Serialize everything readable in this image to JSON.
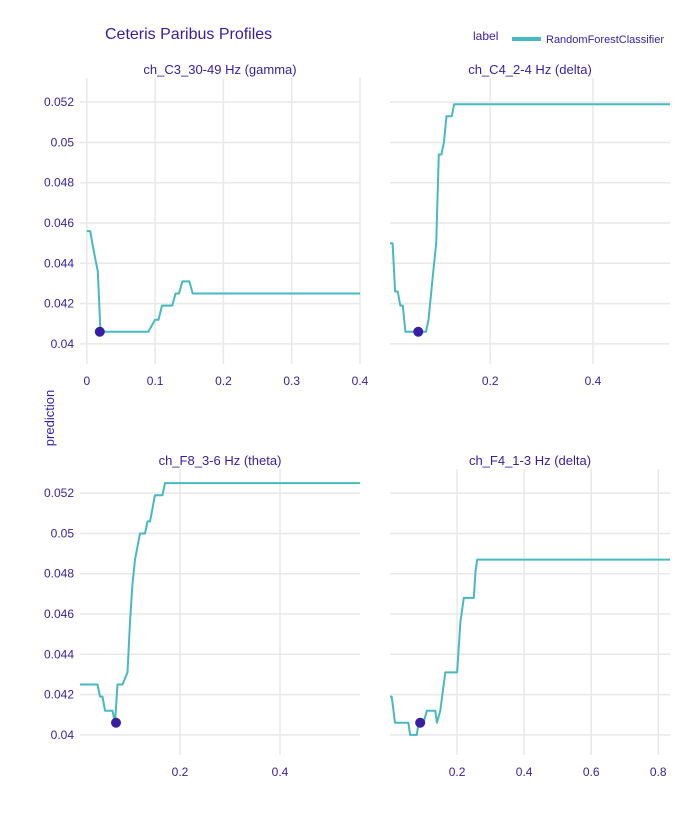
{
  "chart_data": {
    "type": "line",
    "title": "Ceteris Paribus Profiles",
    "ylabel": "prediction",
    "legend": {
      "title": "label",
      "entries": [
        "RandomForestClassifier"
      ],
      "placement": "top-right"
    },
    "line_color": "#46bac2",
    "point_color": "#371ea3",
    "grid": true,
    "ylim": [
      0.039,
      0.0532
    ],
    "yticks": [
      0.04,
      0.042,
      0.044,
      0.046,
      0.048,
      0.05,
      0.052
    ],
    "ytick_labels": [
      "0.04",
      "0.042",
      "0.044",
      "0.046",
      "0.048",
      "0.05",
      "0.052"
    ],
    "panels": [
      {
        "subtitle": "ch_C3_30-49 Hz (gamma)",
        "xlim": [
          -0.01,
          0.4
        ],
        "xticks": [
          0,
          0.1,
          0.2,
          0.3,
          0.4
        ],
        "xtick_labels": [
          "0",
          "0.1",
          "0.2",
          "0.3",
          "0.4"
        ],
        "show_yticks": true,
        "line": {
          "x": [
            0,
            0.005,
            0.008,
            0.012,
            0.016,
            0.02,
            0.05,
            0.09,
            0.1,
            0.105,
            0.11,
            0.125,
            0.13,
            0.135,
            0.14,
            0.15,
            0.155,
            0.4
          ],
          "y": [
            0.0456,
            0.0456,
            0.045,
            0.0443,
            0.0436,
            0.0406,
            0.0406,
            0.0406,
            0.0412,
            0.0412,
            0.0419,
            0.0419,
            0.0425,
            0.0425,
            0.0431,
            0.0431,
            0.0425,
            0.0425
          ]
        },
        "point": {
          "x": 0.019,
          "y": 0.0406
        }
      },
      {
        "subtitle": "ch_C4_2-4 Hz (delta)",
        "xlim": [
          0.005,
          0.55
        ],
        "xticks": [
          0.2,
          0.4
        ],
        "xtick_labels": [
          "0.2",
          "0.4"
        ],
        "show_yticks": false,
        "line": {
          "x": [
            0.005,
            0.01,
            0.015,
            0.02,
            0.025,
            0.03,
            0.035,
            0.04,
            0.05,
            0.06,
            0.07,
            0.075,
            0.08,
            0.085,
            0.09,
            0.095,
            0.1,
            0.105,
            0.11,
            0.115,
            0.12,
            0.125,
            0.13,
            0.135,
            0.14,
            0.55
          ],
          "y": [
            0.045,
            0.045,
            0.0426,
            0.0426,
            0.0419,
            0.0419,
            0.0406,
            0.0406,
            0.0406,
            0.0406,
            0.0406,
            0.0406,
            0.0412,
            0.0425,
            0.0438,
            0.045,
            0.0494,
            0.0494,
            0.05,
            0.0513,
            0.0513,
            0.0513,
            0.0519,
            0.0519,
            0.0519,
            0.0519
          ]
        },
        "point": {
          "x": 0.06,
          "y": 0.0406
        }
      },
      {
        "subtitle": "ch_F8_3-6 Hz (theta)",
        "xlim": [
          0,
          0.56
        ],
        "xticks": [
          0.2,
          0.4
        ],
        "xtick_labels": [
          "0.2",
          "0.4"
        ],
        "show_yticks": true,
        "line": {
          "x": [
            0,
            0.03,
            0.035,
            0.04,
            0.045,
            0.05,
            0.06,
            0.065,
            0.07,
            0.075,
            0.085,
            0.095,
            0.1,
            0.105,
            0.11,
            0.12,
            0.13,
            0.135,
            0.14,
            0.15,
            0.16,
            0.165,
            0.17,
            0.56
          ],
          "y": [
            0.0425,
            0.0425,
            0.0425,
            0.0419,
            0.0419,
            0.0412,
            0.0412,
            0.0412,
            0.0406,
            0.0425,
            0.0425,
            0.0431,
            0.0456,
            0.0475,
            0.0487,
            0.05,
            0.05,
            0.0506,
            0.0506,
            0.0519,
            0.0519,
            0.0519,
            0.0525,
            0.0525
          ]
        },
        "point": {
          "x": 0.072,
          "y": 0.0406
        }
      },
      {
        "subtitle": "ch_F4_1-3 Hz (delta)",
        "xlim": [
          0.0,
          0.835
        ],
        "xticks": [
          0.2,
          0.4,
          0.6,
          0.8
        ],
        "xtick_labels": [
          "0.2",
          "0.4",
          "0.6",
          "0.8"
        ],
        "show_yticks": false,
        "line": {
          "x": [
            0.0,
            0.005,
            0.015,
            0.04,
            0.055,
            0.06,
            0.075,
            0.08,
            0.085,
            0.1,
            0.11,
            0.12,
            0.13,
            0.135,
            0.14,
            0.15,
            0.16,
            0.165,
            0.175,
            0.185,
            0.2,
            0.21,
            0.215,
            0.22,
            0.23,
            0.25,
            0.255,
            0.26,
            0.835
          ],
          "y": [
            0.0419,
            0.0419,
            0.0406,
            0.0406,
            0.0406,
            0.04,
            0.04,
            0.04,
            0.0406,
            0.0406,
            0.0412,
            0.0412,
            0.0412,
            0.0412,
            0.0406,
            0.0412,
            0.0425,
            0.0431,
            0.0431,
            0.0431,
            0.0431,
            0.0456,
            0.0462,
            0.0468,
            0.0468,
            0.0468,
            0.0481,
            0.0487,
            0.0487
          ]
        },
        "point": {
          "x": 0.09,
          "y": 0.0406
        }
      }
    ]
  }
}
